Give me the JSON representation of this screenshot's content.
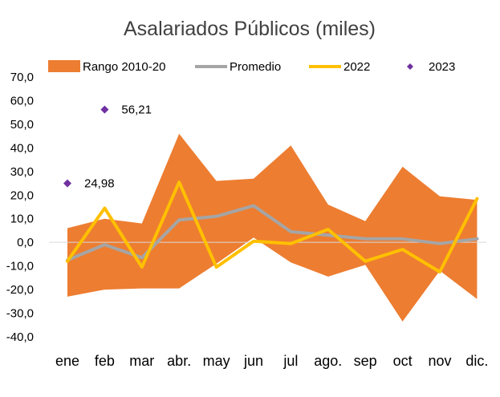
{
  "chart_data": {
    "type": "line",
    "title": "Asalariados Públicos (miles)",
    "categories": [
      "ene",
      "feb",
      "mar",
      "abr.",
      "may",
      "jun",
      "jul",
      "ago.",
      "sep",
      "oct",
      "nov",
      "dic."
    ],
    "ylim": [
      -40,
      70
    ],
    "yticks": [
      "70,0",
      "60,0",
      "50,0",
      "40,0",
      "30,0",
      "20,0",
      "10,0",
      "0,0",
      "-10,0",
      "-20,0",
      "-30,0",
      "-40,0"
    ],
    "legend_position": "top",
    "grid": false,
    "range": {
      "name": "Rango 2010-20",
      "color": "#ED7D31",
      "upper": [
        6,
        10,
        8,
        46,
        26,
        27,
        41,
        16,
        9,
        32,
        19.5,
        18
      ],
      "lower": [
        -23,
        -20,
        -19.5,
        -19.5,
        -9,
        2,
        -8.5,
        -14.5,
        -9.5,
        -33.5,
        -12,
        -24
      ]
    },
    "series": [
      {
        "name": "Promedio",
        "color": "#A5A5A5",
        "values": [
          -7.5,
          -1,
          -6.5,
          9.5,
          11,
          15.5,
          4.5,
          3,
          1.5,
          1.5,
          -0.5,
          1.5
        ]
      },
      {
        "name": "2022",
        "color": "#FFC000",
        "values": [
          -8,
          14.5,
          -10.5,
          25.5,
          -10.5,
          0.5,
          -0.5,
          5.5,
          -8,
          -3,
          -12.5,
          18.5
        ]
      }
    ],
    "points": {
      "name": "2023",
      "color": "#7030A0",
      "data": [
        {
          "category": "ene",
          "value": 24.98,
          "label": "24,98"
        },
        {
          "category": "feb",
          "value": 56.21,
          "label": "56,21"
        }
      ]
    }
  }
}
